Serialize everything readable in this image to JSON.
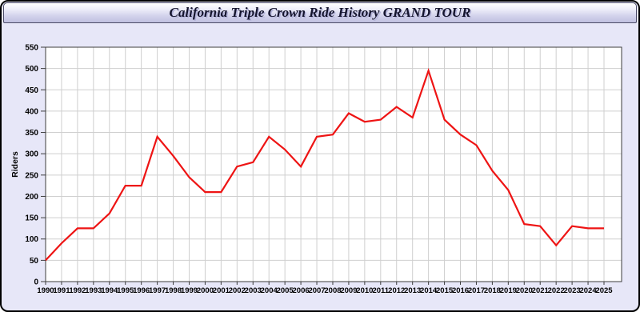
{
  "window": {
    "title": "California Triple Crown Ride History GRAND TOUR"
  },
  "colors": {
    "line": "#ee1414",
    "window_bg": "#e7e7f8",
    "titlebar_top": "#ffffff",
    "titlebar_bottom": "#c0c0e0",
    "plot_bg": "#ffffff",
    "grid": "#cfcfcf",
    "plot_border": "#3c3c3c",
    "tick_label": "#000000"
  },
  "chart_data": {
    "type": "line",
    "title": "California Triple Crown Ride History GRAND TOUR",
    "xlabel": "",
    "ylabel": "Riders",
    "ylim": [
      0,
      550
    ],
    "ytick_step": 50,
    "grid": true,
    "legend_position": "none",
    "x": [
      1990,
      1991,
      1992,
      1993,
      1994,
      1995,
      1996,
      1997,
      1998,
      1999,
      2000,
      2001,
      2002,
      2003,
      2004,
      2005,
      2006,
      2007,
      2008,
      2009,
      2010,
      2011,
      2012,
      2013,
      2014,
      2015,
      2016,
      2017,
      2018,
      2019,
      2020,
      2021,
      2022,
      2023,
      2024,
      2025
    ],
    "series": [
      {
        "name": "Riders",
        "color": "#ee1414",
        "values": [
          50,
          90,
          125,
          125,
          160,
          225,
          225,
          340,
          295,
          245,
          210,
          210,
          270,
          280,
          340,
          310,
          270,
          340,
          345,
          395,
          375,
          380,
          410,
          385,
          495,
          380,
          345,
          320,
          260,
          215,
          135,
          130,
          85,
          130,
          125,
          125
        ]
      }
    ]
  }
}
